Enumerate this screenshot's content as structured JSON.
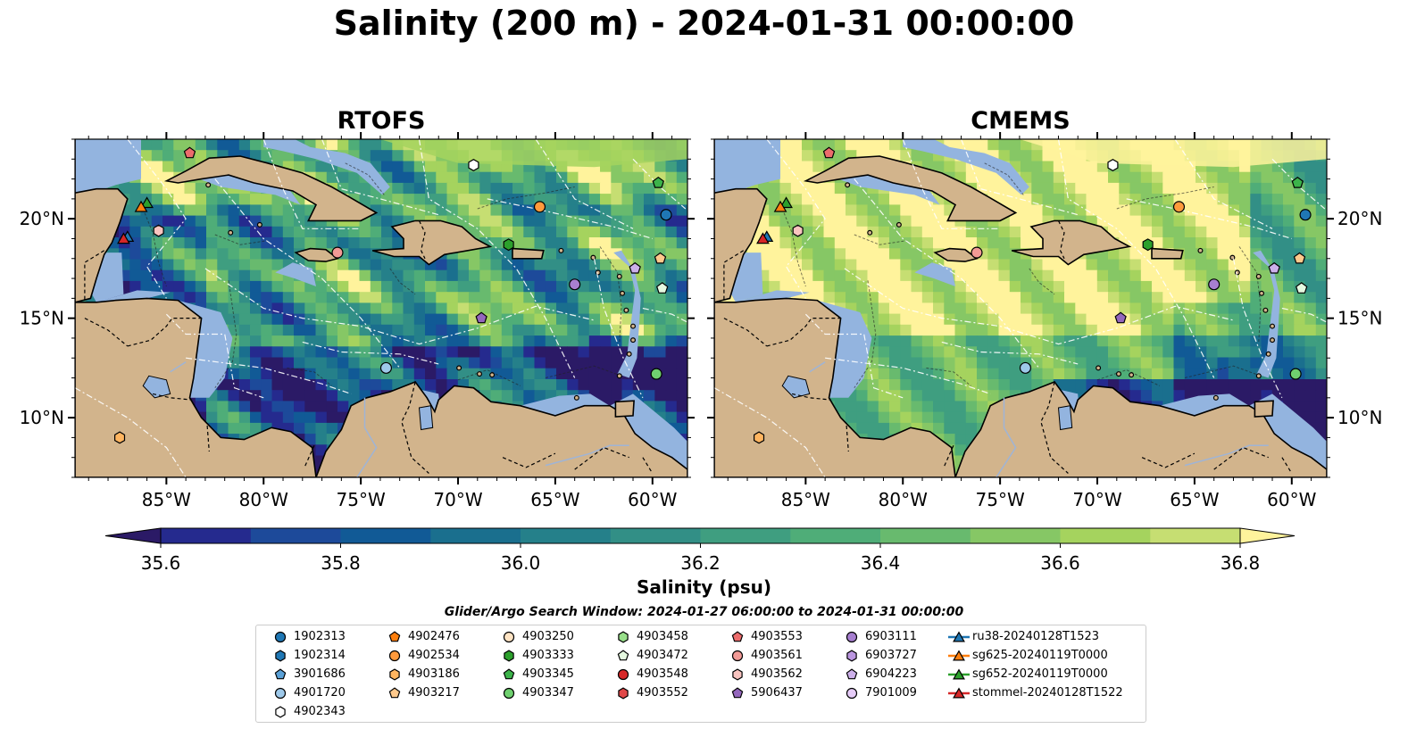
{
  "title": "Salinity (200 m) - 2024-01-31 00:00:00",
  "panels": [
    {
      "title": "RTOFS"
    },
    {
      "title": "CMEMS"
    }
  ],
  "map": {
    "lon_range": [
      -89.7,
      -58.2
    ],
    "lat_range": [
      7,
      24
    ],
    "lon_ticks": [
      "85°W",
      "80°W",
      "75°W",
      "70°W",
      "65°W",
      "60°W"
    ],
    "lat_ticks": [
      "20°N",
      "15°N",
      "10°N"
    ],
    "land_color": "#d2b48c",
    "shelf_color": "#93b4df"
  },
  "colorbar": {
    "label": "Salinity (psu)",
    "ticks": [
      "35.6",
      "35.8",
      "36.0",
      "36.2",
      "36.4",
      "36.6",
      "36.8"
    ],
    "colors": [
      "#2b1a66",
      "#252a8e",
      "#1d4a9a",
      "#115a96",
      "#1a6f8e",
      "#25808a",
      "#328f86",
      "#3f9e80",
      "#4fad78",
      "#68ba6e",
      "#86c765",
      "#a5d35e",
      "#c6de72",
      "#fff39c"
    ]
  },
  "search_window": "Glider/Argo Search Window: 2024-01-27 06:00:00 to 2024-01-31 00:00:00",
  "legend": {
    "columns": [
      [
        {
          "label": "1902313",
          "marker": "circle",
          "color": "#1f77b4"
        },
        {
          "label": "1902314",
          "marker": "hexagon",
          "color": "#1f77b4"
        },
        {
          "label": "3901686",
          "marker": "pentagon",
          "color": "#5aa0d6"
        },
        {
          "label": "4901720",
          "marker": "circle",
          "color": "#9ec9ea"
        },
        {
          "label": "4902343",
          "marker": "hexagon",
          "color": "#ffffff"
        }
      ],
      [
        {
          "label": "4902476",
          "marker": "pentagon",
          "color": "#ff7f0e"
        },
        {
          "label": "4902534",
          "marker": "circle",
          "color": "#ff9a3c"
        },
        {
          "label": "4903186",
          "marker": "hexagon",
          "color": "#ffb560"
        },
        {
          "label": "4903217",
          "marker": "pentagon",
          "color": "#ffc98c"
        }
      ],
      [
        {
          "label": "4903250",
          "marker": "circle",
          "color": "#ffe4c4"
        },
        {
          "label": "4903333",
          "marker": "hexagon",
          "color": "#2ca02c"
        },
        {
          "label": "4903345",
          "marker": "pentagon",
          "color": "#3cb34a"
        },
        {
          "label": "4903347",
          "marker": "circle",
          "color": "#6fd06f"
        }
      ],
      [
        {
          "label": "4903458",
          "marker": "hexagon",
          "color": "#98df8a"
        },
        {
          "label": "4903472",
          "marker": "pentagon",
          "color": "#e5f9e0"
        },
        {
          "label": "4903548",
          "marker": "circle",
          "color": "#d62728"
        },
        {
          "label": "4903552",
          "marker": "hexagon",
          "color": "#e04848"
        }
      ],
      [
        {
          "label": "4903553",
          "marker": "pentagon",
          "color": "#ec6c6c"
        },
        {
          "label": "4903561",
          "marker": "circle",
          "color": "#f29a96"
        },
        {
          "label": "4903562",
          "marker": "hexagon",
          "color": "#f9c4c0"
        },
        {
          "label": "5906437",
          "marker": "pentagon",
          "color": "#9467bd"
        }
      ],
      [
        {
          "label": "6903111",
          "marker": "circle",
          "color": "#a77fd0"
        },
        {
          "label": "6903727",
          "marker": "hexagon",
          "color": "#bb96e0"
        },
        {
          "label": "6904223",
          "marker": "pentagon",
          "color": "#cdb0ea"
        },
        {
          "label": "7901009",
          "marker": "circle",
          "color": "#e6ccf8"
        }
      ],
      [
        {
          "label": "ru38-20240128T1523",
          "marker": "triangle",
          "color": "#1f77b4"
        },
        {
          "label": "sg625-20240119T0000",
          "marker": "triangle",
          "color": "#ff7f0e"
        },
        {
          "label": "sg652-20240119T0000",
          "marker": "triangle",
          "color": "#2ca02c"
        },
        {
          "label": "stommel-20240128T1522",
          "marker": "triangle",
          "color": "#d62728"
        }
      ]
    ]
  },
  "floats": [
    {
      "marker": "circle",
      "color": "#1f77b4",
      "lon": -59.3,
      "lat": 20.2
    },
    {
      "marker": "pentagon",
      "color": "#3cb34a",
      "lon": -59.7,
      "lat": 21.8
    },
    {
      "marker": "hexagon",
      "color": "#ffffff",
      "lon": -69.2,
      "lat": 22.7
    },
    {
      "marker": "circle",
      "color": "#ff9a3c",
      "lon": -65.8,
      "lat": 20.6
    },
    {
      "marker": "hexagon",
      "color": "#2ca02c",
      "lon": -67.4,
      "lat": 18.7
    },
    {
      "marker": "pentagon",
      "color": "#ffc98c",
      "lon": -59.6,
      "lat": 18.0
    },
    {
      "marker": "pentagon",
      "color": "#cdb0ea",
      "lon": -60.9,
      "lat": 17.5
    },
    {
      "marker": "circle",
      "color": "#a77fd0",
      "lon": -64.0,
      "lat": 16.7
    },
    {
      "marker": "pentagon",
      "color": "#e5f9e0",
      "lon": -59.5,
      "lat": 16.5
    },
    {
      "marker": "circle",
      "color": "#f29a96",
      "lon": -76.2,
      "lat": 18.3
    },
    {
      "marker": "hexagon",
      "color": "#f9c4c0",
      "lon": -85.4,
      "lat": 19.4
    },
    {
      "marker": "pentagon",
      "color": "#ec6c6c",
      "lon": -83.8,
      "lat": 23.3
    },
    {
      "marker": "pentagon",
      "color": "#9467bd",
      "lon": -68.8,
      "lat": 15.0
    },
    {
      "marker": "circle",
      "color": "#9ec9ea",
      "lon": -73.7,
      "lat": 12.5
    },
    {
      "marker": "circle",
      "color": "#6fd06f",
      "lon": -59.8,
      "lat": 12.2
    },
    {
      "marker": "hexagon",
      "color": "#ffb560",
      "lon": -87.4,
      "lat": 9.0
    },
    {
      "marker": "triangle",
      "color": "#2ca02c",
      "lon": -86.0,
      "lat": 20.8
    },
    {
      "marker": "triangle",
      "color": "#ff7f0e",
      "lon": -86.3,
      "lat": 20.6
    },
    {
      "marker": "triangle",
      "color": "#1f77b4",
      "lon": -87.0,
      "lat": 19.1
    },
    {
      "marker": "triangle",
      "color": "#d62728",
      "lon": -87.2,
      "lat": 19.0
    }
  ]
}
